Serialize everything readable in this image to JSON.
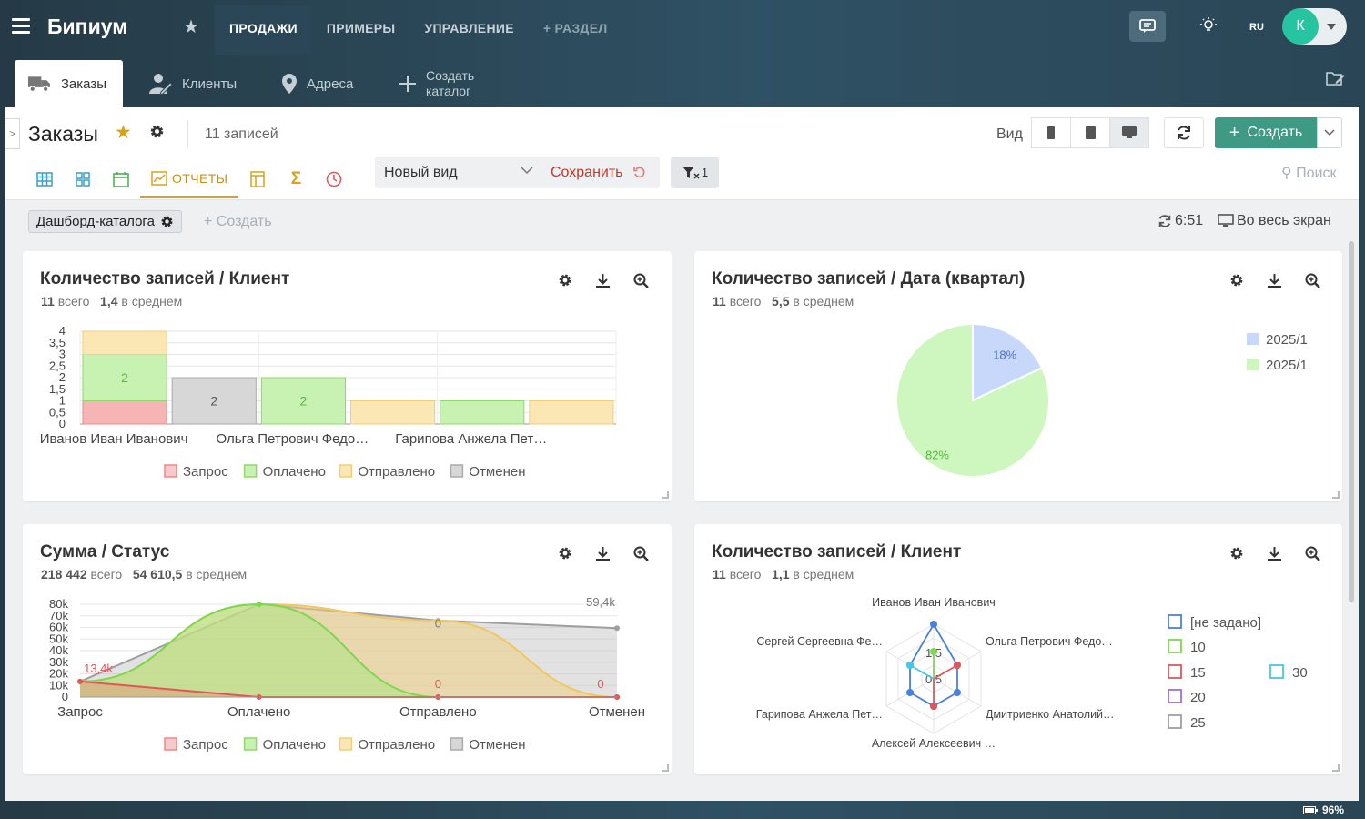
{
  "app": {
    "logo": "Бипиум"
  },
  "topnav": {
    "items": [
      {
        "label": "ПРОДАЖИ",
        "active": true
      },
      {
        "label": "ПРИМЕРЫ"
      },
      {
        "label": "УПРАВЛЕНИЕ"
      },
      {
        "label": "+ РАЗДЕЛ"
      }
    ],
    "lang": "RU",
    "avatar": "К"
  },
  "tabs": [
    {
      "label": "Заказы",
      "icon": "truck-icon",
      "active": true
    },
    {
      "label": "Клиенты",
      "icon": "user-edit-icon"
    },
    {
      "label": "Адреса",
      "icon": "map-pin-icon"
    },
    {
      "label": "Создать каталог",
      "icon": "plus-icon"
    }
  ],
  "header": {
    "title": "Заказы",
    "count": "11 записей",
    "view_label": "Вид",
    "create_label": "Создать"
  },
  "views": {
    "active_label": "ОТЧЕТЫ",
    "view_name": "Новый вид",
    "save_label": "Сохранить",
    "filter_count": "1",
    "search_placeholder": "Поиск"
  },
  "dash": {
    "chip": "Дашборд-каталога",
    "create": "+ Создать",
    "time": "6:51",
    "fullscreen": "Во весь экран"
  },
  "status": {
    "battery": "96%"
  },
  "colors": {
    "accent": "#3e9a84",
    "star": "#d9a21b",
    "red": "#e15759",
    "green": "#7dd84f",
    "yellow": "#f1c75e",
    "gray": "#9e9e9e"
  },
  "cards": [
    {
      "title": "Количество записей / Клиент",
      "total": "11",
      "total_lbl": "всего",
      "avg": "1,4",
      "avg_lbl": "в среднем"
    },
    {
      "title": "Количество записей / Дата (квартал)",
      "total": "11",
      "total_lbl": "всего",
      "avg": "5,5",
      "avg_lbl": "в среднем"
    },
    {
      "title": "Сумма / Статус",
      "total": "218 442",
      "total_lbl": "всего",
      "avg": "54 610,5",
      "avg_lbl": "в среднем"
    },
    {
      "title": "Количество записей / Клиент",
      "total": "11",
      "total_lbl": "всего",
      "avg": "1,1",
      "avg_lbl": "в среднем"
    }
  ],
  "chart_data": [
    {
      "type": "bar",
      "stacked": true,
      "categories": [
        "Иванов Иван Иванович",
        "",
        "Ольга Петрович Федо…",
        "",
        "Гарипова Анжела Пет…",
        ""
      ],
      "ylim": [
        0,
        4
      ],
      "yticks": [
        "0",
        "0,5",
        "1",
        "1,5",
        "2",
        "2,5",
        "3",
        "3,5",
        "4"
      ],
      "series": [
        {
          "name": "Запрос",
          "color": "#f6b4b4",
          "stroke": "#e88",
          "values": [
            1,
            0,
            0,
            0,
            0,
            0
          ]
        },
        {
          "name": "Оплачено",
          "color": "#c7f2b2",
          "stroke": "#8fd86e",
          "values": [
            2,
            0,
            2,
            0,
            1,
            0
          ]
        },
        {
          "name": "Отправлено",
          "color": "#fbe7b3",
          "stroke": "#f0cf7b",
          "values": [
            1,
            0,
            0,
            1,
            0,
            1
          ]
        },
        {
          "name": "Отменен",
          "color": "#d7d7d7",
          "stroke": "#aaa",
          "values": [
            0,
            2,
            0,
            0,
            0,
            0
          ]
        }
      ],
      "data_labels": [
        {
          "cat": 0,
          "text": "2"
        },
        {
          "cat": 1,
          "text": "2"
        },
        {
          "cat": 2,
          "text": "2"
        }
      ]
    },
    {
      "type": "pie",
      "slices": [
        {
          "name": "2025/1",
          "value": 18,
          "label": "18%",
          "color": "#c8d8fb",
          "text_color": "#4a72c4"
        },
        {
          "name": "2025/1",
          "value": 82,
          "label": "82%",
          "color": "#cdf7bf",
          "text_color": "#5cb543"
        }
      ]
    },
    {
      "type": "area",
      "categories": [
        "Запрос",
        "Оплачено",
        "Отправлено",
        "Отменен"
      ],
      "ylim": [
        0,
        80000
      ],
      "yticks": [
        "0",
        "10k",
        "20k",
        "30k",
        "40k",
        "50k",
        "60k",
        "70k",
        "80k"
      ],
      "series": [
        {
          "name": "Запрос",
          "line": "#e15759",
          "fill": "rgba(231,120,110,.35)",
          "values": [
            13400,
            0,
            0,
            0
          ]
        },
        {
          "name": "Оплачено",
          "line": "#7dd84f",
          "fill": "rgba(170,230,130,.55)",
          "values": [
            13400,
            80000,
            0,
            0
          ]
        },
        {
          "name": "Отправлено",
          "line": "#f1c75e",
          "fill": "rgba(238,205,130,.55)",
          "values": [
            13400,
            80000,
            66000,
            0
          ]
        },
        {
          "name": "Отменен",
          "line": "#9e9e9e",
          "fill": "rgba(190,190,190,.45)",
          "values": [
            13400,
            80000,
            66000,
            59400
          ]
        }
      ],
      "labels": [
        {
          "x": 0,
          "y": 13400,
          "text": "13,4k",
          "color": "#e15759"
        },
        {
          "x": 2,
          "y": 60000,
          "text": "0",
          "color": "#777"
        },
        {
          "x": 2,
          "y": 8000,
          "text": "0",
          "color": "#e15759"
        },
        {
          "x": 3,
          "y": 8000,
          "text": "0",
          "color": "#e15759"
        },
        {
          "x": 3,
          "y": 70000,
          "text": "59,4k",
          "color": "#777"
        }
      ]
    },
    {
      "type": "radar",
      "axes": [
        "Иванов Иван Иванович",
        "Ольга Петрович Федо…",
        "Дмитриенко Анатолий…",
        "Алексей Алексеевич …",
        "Гарипова Анжела Пет…",
        "Сергей Сергеевна Фе…"
      ],
      "rticks": [
        "0,5",
        "1,5"
      ],
      "rmax": 2,
      "series": [
        {
          "name": "[не задано]",
          "color": "#4a80e0",
          "values": [
            2,
            1,
            1,
            1,
            1,
            1
          ]
        },
        {
          "name": "10",
          "color": "#7dd84f",
          "values": [
            1,
            0,
            0,
            0,
            0,
            0
          ]
        },
        {
          "name": "15",
          "color": "#e15759",
          "values": [
            0,
            1,
            0,
            1,
            0,
            0
          ]
        },
        {
          "name": "20",
          "color": "#9b6fe0",
          "values": [
            0,
            0,
            0,
            0,
            0,
            0
          ]
        },
        {
          "name": "25",
          "color": "#9e9e9e",
          "values": [
            0,
            0,
            0,
            0,
            0,
            0
          ]
        },
        {
          "name": "30",
          "color": "#45c8e8",
          "values": [
            0,
            0,
            0,
            0,
            0,
            1
          ]
        }
      ]
    }
  ]
}
